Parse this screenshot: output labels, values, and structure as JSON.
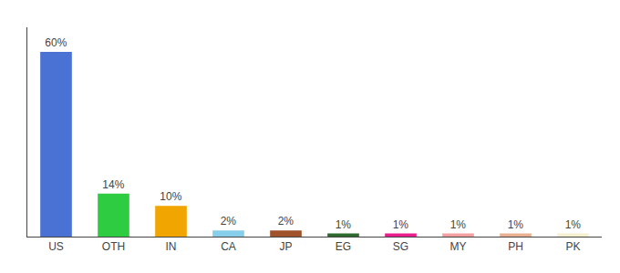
{
  "chart_data": {
    "type": "bar",
    "categories": [
      "US",
      "OTH",
      "IN",
      "CA",
      "JP",
      "EG",
      "SG",
      "MY",
      "PH",
      "PK"
    ],
    "values": [
      60,
      14,
      10,
      2,
      2,
      1,
      1,
      1,
      1,
      1
    ],
    "value_labels": [
      "60%",
      "14%",
      "10%",
      "2%",
      "2%",
      "1%",
      "1%",
      "1%",
      "1%",
      "1%"
    ],
    "colors": [
      "#4a72d4",
      "#2ecc40",
      "#f0a500",
      "#87ceeb",
      "#a0522d",
      "#2d6a2d",
      "#e91e8c",
      "#f4a0a0",
      "#e8b090",
      "#f5f0d0"
    ],
    "ylim": [
      0,
      68
    ],
    "tick_labels": "x",
    "grid": false,
    "data_labels": true
  }
}
